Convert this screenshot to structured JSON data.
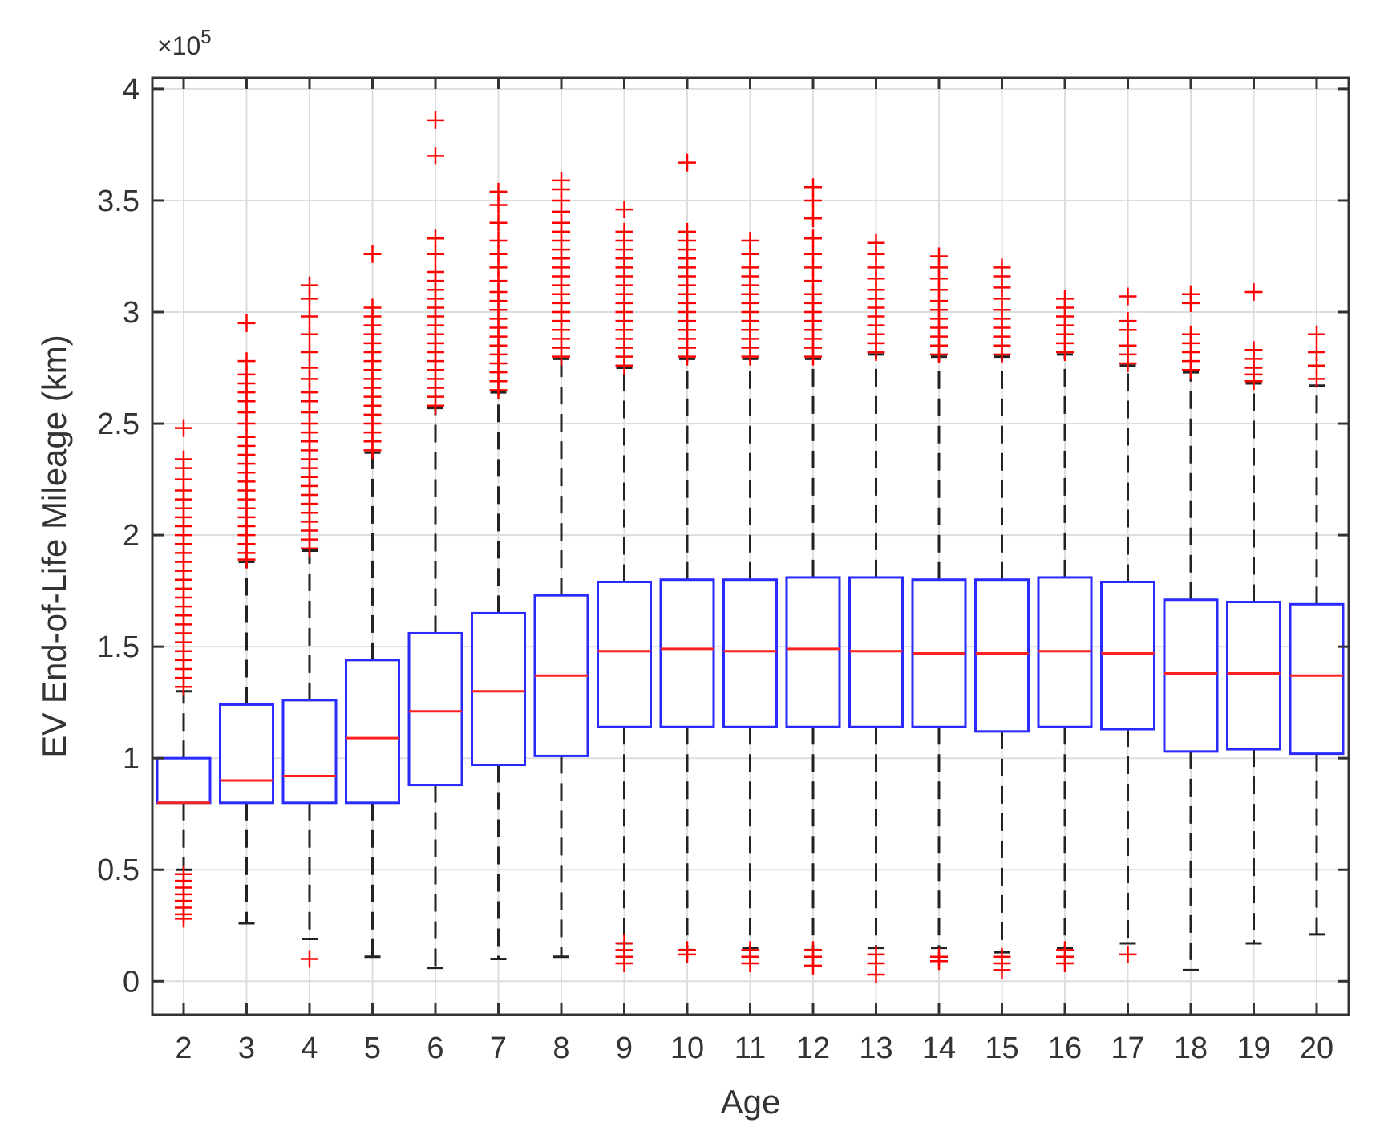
{
  "chart_data": {
    "type": "boxplot",
    "xlabel": "Age",
    "ylabel": "EV End-of-Life Mileage (km)",
    "y_exponent_label": "×10",
    "y_exponent_power": "5",
    "ylim": [
      -0.15,
      4.05
    ],
    "y_ticks": [
      0,
      0.5,
      1,
      1.5,
      2,
      2.5,
      3,
      3.5,
      4
    ],
    "y_tick_labels": [
      "0",
      "0.5",
      "1",
      "1.5",
      "2",
      "2.5",
      "3",
      "3.5",
      "4"
    ],
    "grid": true,
    "colors": {
      "box": "#2a2aff",
      "median": "#ff2020",
      "whisker": "#222222",
      "outlier": "#ff0000",
      "grid": "#dddddd",
      "axis": "#333333"
    },
    "categories": [
      "2",
      "3",
      "4",
      "5",
      "6",
      "7",
      "8",
      "9",
      "10",
      "11",
      "12",
      "13",
      "14",
      "15",
      "16",
      "17",
      "18",
      "19",
      "20"
    ],
    "boxes": [
      {
        "age": "2",
        "whisker_low": 0.5,
        "q1": 0.8,
        "median": 0.8,
        "q3": 1.0,
        "whisker_high": 1.3,
        "outliers": [
          0.28,
          0.3,
          0.33,
          0.36,
          0.39,
          0.42,
          0.45,
          0.48,
          1.32,
          1.36,
          1.4,
          1.44,
          1.48,
          1.52,
          1.56,
          1.6,
          1.64,
          1.68,
          1.72,
          1.76,
          1.8,
          1.84,
          1.88,
          1.92,
          1.96,
          2.0,
          2.04,
          2.08,
          2.12,
          2.16,
          2.2,
          2.25,
          2.3,
          2.34,
          2.48
        ]
      },
      {
        "age": "3",
        "whisker_low": 0.26,
        "q1": 0.8,
        "median": 0.9,
        "q3": 1.24,
        "whisker_high": 1.88,
        "outliers": [
          1.89,
          1.92,
          1.96,
          2.0,
          2.04,
          2.08,
          2.12,
          2.16,
          2.2,
          2.24,
          2.28,
          2.32,
          2.36,
          2.4,
          2.44,
          2.5,
          2.55,
          2.6,
          2.64,
          2.68,
          2.72,
          2.78,
          2.95
        ]
      },
      {
        "age": "4",
        "whisker_low": 0.19,
        "q1": 0.8,
        "median": 0.92,
        "q3": 1.26,
        "whisker_high": 1.93,
        "outliers": [
          0.1,
          1.94,
          1.98,
          2.02,
          2.06,
          2.1,
          2.14,
          2.18,
          2.22,
          2.26,
          2.3,
          2.34,
          2.38,
          2.42,
          2.46,
          2.5,
          2.55,
          2.6,
          2.64,
          2.7,
          2.75,
          2.82,
          2.9,
          2.98,
          3.06,
          3.12
        ]
      },
      {
        "age": "5",
        "whisker_low": 0.11,
        "q1": 0.8,
        "median": 1.09,
        "q3": 1.44,
        "whisker_high": 2.37,
        "outliers": [
          2.38,
          2.42,
          2.46,
          2.5,
          2.54,
          2.58,
          2.62,
          2.66,
          2.7,
          2.74,
          2.78,
          2.82,
          2.86,
          2.9,
          2.94,
          2.98,
          3.02,
          3.26
        ]
      },
      {
        "age": "6",
        "whisker_low": 0.06,
        "q1": 0.88,
        "median": 1.21,
        "q3": 1.56,
        "whisker_high": 2.57,
        "outliers": [
          2.58,
          2.62,
          2.66,
          2.7,
          2.74,
          2.78,
          2.82,
          2.86,
          2.9,
          2.94,
          2.98,
          3.02,
          3.06,
          3.1,
          3.14,
          3.18,
          3.26,
          3.33,
          3.7,
          3.86
        ]
      },
      {
        "age": "7",
        "whisker_low": 0.1,
        "q1": 0.97,
        "median": 1.3,
        "q3": 1.65,
        "whisker_high": 2.64,
        "outliers": [
          2.65,
          2.69,
          2.73,
          2.77,
          2.81,
          2.85,
          2.89,
          2.93,
          2.97,
          3.01,
          3.05,
          3.09,
          3.14,
          3.2,
          3.26,
          3.32,
          3.4,
          3.48,
          3.54
        ]
      },
      {
        "age": "8",
        "whisker_low": 0.11,
        "q1": 1.01,
        "median": 1.37,
        "q3": 1.73,
        "whisker_high": 2.79,
        "outliers": [
          2.8,
          2.84,
          2.88,
          2.92,
          2.96,
          3.0,
          3.04,
          3.08,
          3.12,
          3.16,
          3.2,
          3.24,
          3.28,
          3.32,
          3.36,
          3.4,
          3.45,
          3.5,
          3.55,
          3.59
        ]
      },
      {
        "age": "9",
        "whisker_low": 0.17,
        "q1": 1.14,
        "median": 1.48,
        "q3": 1.79,
        "whisker_high": 2.75,
        "outliers": [
          0.08,
          0.11,
          0.14,
          0.17,
          2.76,
          2.8,
          2.84,
          2.88,
          2.92,
          2.96,
          3.0,
          3.04,
          3.08,
          3.12,
          3.16,
          3.2,
          3.24,
          3.28,
          3.32,
          3.36,
          3.46
        ]
      },
      {
        "age": "10",
        "whisker_low": 0.14,
        "q1": 1.14,
        "median": 1.49,
        "q3": 1.8,
        "whisker_high": 2.79,
        "outliers": [
          0.12,
          0.14,
          2.8,
          2.84,
          2.88,
          2.92,
          2.96,
          3.0,
          3.04,
          3.08,
          3.12,
          3.16,
          3.2,
          3.24,
          3.28,
          3.32,
          3.36,
          3.67
        ]
      },
      {
        "age": "11",
        "whisker_low": 0.15,
        "q1": 1.14,
        "median": 1.48,
        "q3": 1.8,
        "whisker_high": 2.79,
        "outliers": [
          0.08,
          0.11,
          0.14,
          2.8,
          2.84,
          2.88,
          2.92,
          2.96,
          3.0,
          3.04,
          3.08,
          3.12,
          3.16,
          3.2,
          3.26,
          3.32
        ]
      },
      {
        "age": "12",
        "whisker_low": 0.14,
        "q1": 1.14,
        "median": 1.49,
        "q3": 1.81,
        "whisker_high": 2.79,
        "outliers": [
          0.07,
          0.11,
          0.14,
          2.8,
          2.84,
          2.88,
          2.92,
          2.96,
          3.0,
          3.04,
          3.08,
          3.14,
          3.2,
          3.26,
          3.33,
          3.42,
          3.5,
          3.56
        ]
      },
      {
        "age": "13",
        "whisker_low": 0.15,
        "q1": 1.14,
        "median": 1.48,
        "q3": 1.81,
        "whisker_high": 2.81,
        "outliers": [
          0.03,
          0.08,
          0.12,
          2.82,
          2.86,
          2.9,
          2.94,
          2.98,
          3.02,
          3.06,
          3.1,
          3.15,
          3.2,
          3.26,
          3.31
        ]
      },
      {
        "age": "14",
        "whisker_low": 0.15,
        "q1": 1.14,
        "median": 1.47,
        "q3": 1.8,
        "whisker_high": 2.8,
        "outliers": [
          0.09,
          0.11,
          2.81,
          2.85,
          2.89,
          2.93,
          2.97,
          3.01,
          3.05,
          3.1,
          3.15,
          3.2,
          3.25
        ]
      },
      {
        "age": "15",
        "whisker_low": 0.13,
        "q1": 1.12,
        "median": 1.47,
        "q3": 1.8,
        "whisker_high": 2.8,
        "outliers": [
          0.05,
          0.08,
          0.11,
          2.81,
          2.85,
          2.89,
          2.93,
          2.97,
          3.01,
          3.06,
          3.11,
          3.16,
          3.2
        ]
      },
      {
        "age": "16",
        "whisker_low": 0.15,
        "q1": 1.14,
        "median": 1.48,
        "q3": 1.81,
        "whisker_high": 2.81,
        "outliers": [
          0.08,
          0.11,
          0.14,
          2.82,
          2.86,
          2.9,
          2.94,
          2.98,
          3.02,
          3.06
        ]
      },
      {
        "age": "17",
        "whisker_low": 0.17,
        "q1": 1.13,
        "median": 1.47,
        "q3": 1.79,
        "whisker_high": 2.76,
        "outliers": [
          0.12,
          2.77,
          2.81,
          2.85,
          2.92,
          2.96,
          3.07
        ]
      },
      {
        "age": "18",
        "whisker_low": 0.05,
        "q1": 1.03,
        "median": 1.38,
        "q3": 1.71,
        "whisker_high": 2.73,
        "outliers": [
          2.74,
          2.78,
          2.82,
          2.86,
          2.9,
          3.04,
          3.08
        ]
      },
      {
        "age": "19",
        "whisker_low": 0.17,
        "q1": 1.04,
        "median": 1.38,
        "q3": 1.7,
        "whisker_high": 2.68,
        "outliers": [
          2.69,
          2.72,
          2.75,
          2.79,
          2.83,
          3.09
        ]
      },
      {
        "age": "20",
        "whisker_low": 0.21,
        "q1": 1.02,
        "median": 1.37,
        "q3": 1.69,
        "whisker_high": 2.67,
        "outliers": [
          2.7,
          2.76,
          2.82,
          2.9
        ]
      }
    ]
  }
}
